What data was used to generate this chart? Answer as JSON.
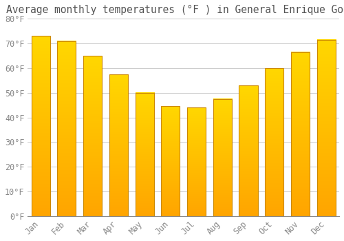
{
  "title": "Average monthly temperatures (°F ) in General Enrique Godoy",
  "months": [
    "Jan",
    "Feb",
    "Mar",
    "Apr",
    "May",
    "Jun",
    "Jul",
    "Aug",
    "Sep",
    "Oct",
    "Nov",
    "Dec"
  ],
  "values": [
    73,
    71,
    65,
    57.5,
    50,
    44.5,
    44,
    47.5,
    53,
    60,
    66.5,
    71.5
  ],
  "bar_color_bottom": "#FFA500",
  "bar_color_top": "#FFD700",
  "bar_edge_color": "#CC8800",
  "background_color": "#FFFFFF",
  "plot_bg_color": "#FFFFFF",
  "grid_color": "#CCCCCC",
  "ylim": [
    0,
    80
  ],
  "yticks": [
    0,
    10,
    20,
    30,
    40,
    50,
    60,
    70,
    80
  ],
  "tick_label_color": "#888888",
  "title_fontsize": 10.5,
  "tick_fontsize": 8.5,
  "font_family": "monospace"
}
